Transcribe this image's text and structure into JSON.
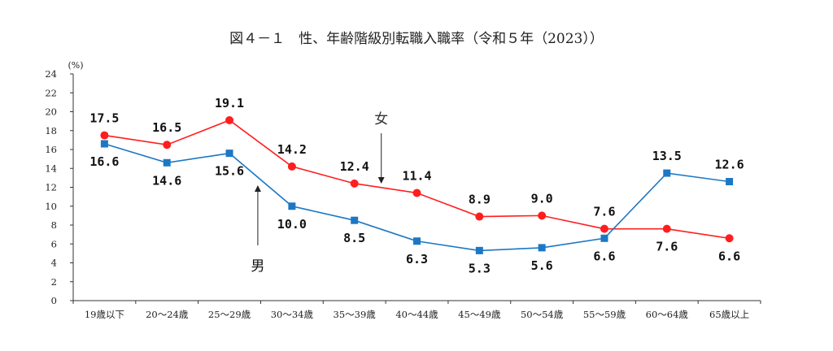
{
  "chart_data": {
    "type": "line",
    "title": "図４－１　性、年齢階級別転職入職率（令和５年（2023））",
    "ylabel": "(%)",
    "xlabel": "",
    "ylim": [
      0,
      24
    ],
    "yticks": [
      0,
      2,
      4,
      6,
      8,
      10,
      12,
      14,
      16,
      18,
      20,
      22,
      24
    ],
    "grid": false,
    "legend": "inline annotations with arrows",
    "categories": [
      "19歳以下",
      "20～24歳",
      "25～29歳",
      "30～34歳",
      "35～39歳",
      "40～44歳",
      "45～49歳",
      "50～54歳",
      "55～59歳",
      "60～64歳",
      "65歳以上"
    ],
    "series": [
      {
        "name": "女",
        "color": "#ff1e1e",
        "marker": "circle",
        "values": [
          17.5,
          16.5,
          19.1,
          14.2,
          12.4,
          11.4,
          8.9,
          9.0,
          7.6,
          7.6,
          6.6
        ],
        "labels": [
          "17.5",
          "16.5",
          "19.1",
          "14.2",
          "12.4",
          "11.4",
          "8.9",
          "9.0",
          "7.6",
          "7.6",
          "6.6"
        ]
      },
      {
        "name": "男",
        "color": "#1c78c4",
        "marker": "square",
        "values": [
          16.6,
          14.6,
          15.6,
          10.0,
          8.5,
          6.3,
          5.3,
          5.6,
          6.6,
          13.5,
          12.6
        ],
        "labels": [
          "16.6",
          "14.6",
          "15.6",
          "10.0",
          "8.5",
          "6.3",
          "5.3",
          "5.6",
          "6.6",
          "13.5",
          "12.6"
        ]
      }
    ]
  }
}
